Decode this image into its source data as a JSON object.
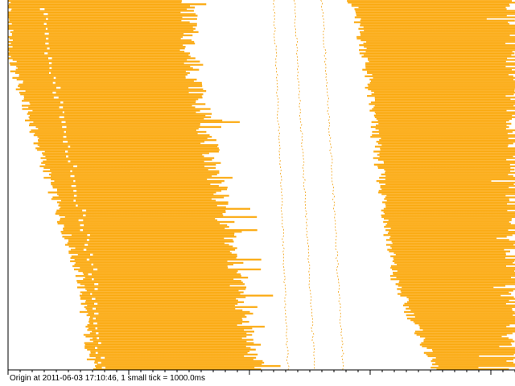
{
  "chart_data": {
    "type": "area",
    "title": "",
    "caption": "Origin at 2011-06-03 17:10:46, 1 small tick = 1000.0ms",
    "xlabel": "",
    "ylabel": "",
    "x_unit": "ms",
    "small_tick_ms": 1000,
    "small_tick_count": 42,
    "large_tick_every": 10,
    "xlim": [
      0,
      42000
    ],
    "row_count": 226,
    "colors": {
      "fill_edge": "#f9a400",
      "fill_mid": "#ffbf4c",
      "trace": "#f2a316",
      "axis": "#000000",
      "background": "#ffffff"
    },
    "bands": [
      {
        "name": "left band",
        "start_ms": [
          0,
          0,
          6000,
          7000
        ],
        "end_ms": [
          15000,
          15000,
          19000,
          20500
        ],
        "row_anchors": [
          0,
          30,
          170,
          226
        ]
      },
      {
        "name": "right band",
        "start_ms": [
          28500,
          29500,
          32000,
          35500
        ],
        "end_ms": [
          42000,
          42000,
          42000,
          42000
        ],
        "row_anchors": [
          0,
          30,
          170,
          226
        ]
      }
    ],
    "traces_ms": [
      {
        "start": 22000,
        "end": 23200
      },
      {
        "start": 23700,
        "end": 25400
      },
      {
        "start": 26000,
        "end": 27800
      }
    ]
  }
}
